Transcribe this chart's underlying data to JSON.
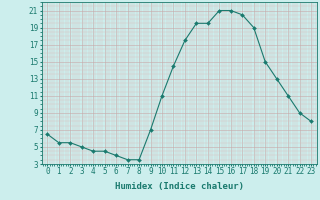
{
  "x": [
    0,
    1,
    2,
    3,
    4,
    5,
    6,
    7,
    8,
    9,
    10,
    11,
    12,
    13,
    14,
    15,
    16,
    17,
    18,
    19,
    20,
    21,
    22,
    23
  ],
  "y": [
    6.5,
    5.5,
    5.5,
    5.0,
    4.5,
    4.5,
    4.0,
    3.5,
    3.5,
    7.0,
    11.0,
    14.5,
    17.5,
    19.5,
    19.5,
    21.0,
    21.0,
    20.5,
    19.0,
    15.0,
    13.0,
    11.0,
    9.0,
    8.0
  ],
  "line_color": "#1a7a6e",
  "marker": "D",
  "marker_size": 2,
  "bg_color": "#cceeed",
  "xlabel": "Humidex (Indice chaleur)",
  "xlabel_fontsize": 6.5,
  "tick_fontsize": 5.5,
  "ylim": [
    3,
    22
  ],
  "xlim": [
    -0.5,
    23.5
  ],
  "yticks": [
    3,
    5,
    7,
    9,
    11,
    13,
    15,
    17,
    19,
    21
  ],
  "xticks": [
    0,
    1,
    2,
    3,
    4,
    5,
    6,
    7,
    8,
    9,
    10,
    11,
    12,
    13,
    14,
    15,
    16,
    17,
    18,
    19,
    20,
    21,
    22,
    23
  ]
}
